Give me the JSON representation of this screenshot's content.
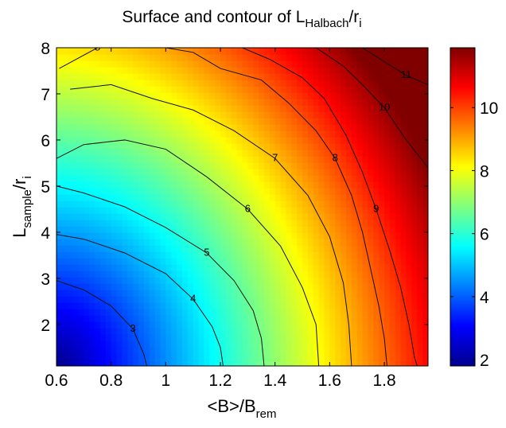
{
  "chart_data": {
    "type": "heatmap",
    "title": {
      "main": "Surface and contour of L",
      "sub": "Halbach",
      "tail": "/r",
      "tail_sub": "i"
    },
    "xlabel": {
      "main": "<B>/B",
      "sub": "rem"
    },
    "ylabel": {
      "main": "L",
      "sub": "sample",
      "tail": "/r",
      "tail_sub": "i"
    },
    "xlim": [
      0.6,
      1.96
    ],
    "ylim": [
      1.1,
      8.0
    ],
    "x_ticks": [
      0.6,
      0.8,
      1,
      1.2,
      1.4,
      1.6,
      1.8
    ],
    "x_tick_labels": [
      "0.6",
      "0.8",
      "1",
      "1.2",
      "1.4",
      "1.6",
      "1.8"
    ],
    "y_ticks": [
      2,
      3,
      4,
      5,
      6,
      7,
      8
    ],
    "y_tick_labels": [
      "2",
      "3",
      "4",
      "5",
      "6",
      "7",
      "8"
    ],
    "colorbar": {
      "range": [
        1.8,
        11.9
      ],
      "ticks": [
        2,
        4,
        6,
        8,
        10
      ],
      "tick_labels": [
        "2",
        "4",
        "6",
        "8",
        "10"
      ],
      "colormap": "jet"
    },
    "contours": [
      {
        "level": 3,
        "label": "3",
        "points": [
          [
            0.6,
            2.95
          ],
          [
            0.7,
            2.75
          ],
          [
            0.8,
            2.4
          ],
          [
            0.88,
            1.9
          ],
          [
            0.92,
            1.35
          ],
          [
            0.93,
            1.1
          ]
        ]
      },
      {
        "level": 4,
        "label": "4",
        "points": [
          [
            0.6,
            3.95
          ],
          [
            0.7,
            3.85
          ],
          [
            0.85,
            3.55
          ],
          [
            1.0,
            3.1
          ],
          [
            1.1,
            2.55
          ],
          [
            1.17,
            1.95
          ],
          [
            1.2,
            1.5
          ],
          [
            1.21,
            1.1
          ]
        ]
      },
      {
        "level": 5,
        "label": "5",
        "points": [
          [
            0.6,
            5.0
          ],
          [
            0.7,
            4.85
          ],
          [
            0.85,
            4.55
          ],
          [
            1.0,
            4.1
          ],
          [
            1.15,
            3.55
          ],
          [
            1.25,
            2.95
          ],
          [
            1.32,
            2.3
          ],
          [
            1.35,
            1.7
          ],
          [
            1.36,
            1.1
          ]
        ]
      },
      {
        "level": 6,
        "label": "6",
        "points": [
          [
            0.6,
            5.6
          ],
          [
            0.7,
            5.9
          ],
          [
            0.85,
            6.0
          ],
          [
            1.0,
            5.8
          ],
          [
            1.15,
            5.2
          ],
          [
            1.3,
            4.5
          ],
          [
            1.42,
            3.7
          ],
          [
            1.5,
            2.8
          ],
          [
            1.55,
            2.0
          ],
          [
            1.56,
            1.1
          ]
        ]
      },
      {
        "level": 7,
        "label": "7",
        "points": [
          [
            0.65,
            7.1
          ],
          [
            0.8,
            7.2
          ],
          [
            0.95,
            6.9
          ],
          [
            1.1,
            6.65
          ],
          [
            1.25,
            6.2
          ],
          [
            1.4,
            5.6
          ],
          [
            1.52,
            4.8
          ],
          [
            1.6,
            3.9
          ],
          [
            1.65,
            2.9
          ],
          [
            1.67,
            2.0
          ],
          [
            1.68,
            1.1
          ]
        ]
      },
      {
        "level": 8,
        "label": "8",
        "points": [
          [
            0.61,
            7.55
          ],
          [
            0.75,
            8.0
          ]
        ]
      },
      {
        "level": 8,
        "label": "8",
        "points": [
          [
            1.0,
            8.0
          ],
          [
            1.1,
            7.9
          ],
          [
            1.2,
            7.55
          ],
          [
            1.35,
            7.3
          ],
          [
            1.45,
            6.8
          ],
          [
            1.55,
            6.2
          ],
          [
            1.62,
            5.6
          ],
          [
            1.68,
            4.8
          ],
          [
            1.72,
            4.0
          ],
          [
            1.75,
            3.2
          ],
          [
            1.78,
            2.4
          ],
          [
            1.8,
            1.7
          ],
          [
            1.81,
            1.1
          ]
        ]
      },
      {
        "level": 9,
        "label": "9",
        "points": [
          [
            1.28,
            8.0
          ],
          [
            1.38,
            7.75
          ],
          [
            1.5,
            7.35
          ],
          [
            1.58,
            6.9
          ],
          [
            1.66,
            6.1
          ],
          [
            1.72,
            5.3
          ],
          [
            1.77,
            4.5
          ],
          [
            1.82,
            3.6
          ],
          [
            1.86,
            2.8
          ],
          [
            1.89,
            2.0
          ],
          [
            1.91,
            1.3
          ],
          [
            1.92,
            1.1
          ]
        ]
      },
      {
        "level": 10,
        "label": "10",
        "points": [
          [
            1.55,
            8.0
          ],
          [
            1.65,
            7.6
          ],
          [
            1.72,
            7.2
          ],
          [
            1.8,
            6.7
          ],
          [
            1.88,
            6.0
          ],
          [
            1.96,
            5.4
          ]
        ]
      },
      {
        "level": 11,
        "label": "11",
        "points": [
          [
            1.72,
            8.0
          ],
          [
            1.8,
            7.7
          ],
          [
            1.88,
            7.4
          ],
          [
            1.96,
            7.2
          ]
        ]
      }
    ]
  }
}
